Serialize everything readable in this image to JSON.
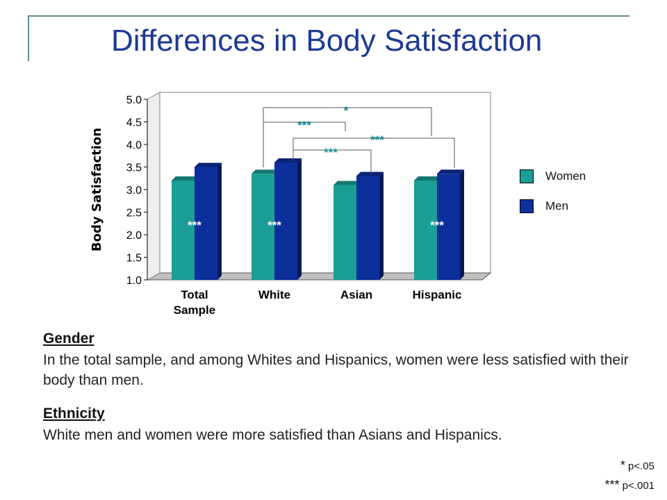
{
  "slide": {
    "title": "Differences in Body Satisfaction"
  },
  "chart_data": {
    "type": "bar",
    "title": "",
    "xlabel": "",
    "ylabel": "Body Satisfaction",
    "ylim": [
      1.0,
      5.0
    ],
    "yticks": [
      "1.0",
      "1.5",
      "2.0",
      "2.5",
      "3.0",
      "3.5",
      "4.0",
      "4.5",
      "5.0"
    ],
    "categories": [
      "Total Sample",
      "White",
      "Asian",
      "Hispanic"
    ],
    "series": [
      {
        "name": "Women",
        "color": "#1a9e96",
        "values": [
          3.2,
          3.35,
          3.1,
          3.2
        ]
      },
      {
        "name": "Men",
        "color": "#0d2f9c",
        "values": [
          3.5,
          3.6,
          3.3,
          3.35
        ]
      }
    ],
    "gender_significance": [
      "***",
      "***",
      "",
      "***"
    ],
    "ethnicity_comparisons": [
      {
        "from": "White",
        "to": "Hispanic",
        "label": "*"
      },
      {
        "from": "White",
        "to": "Asian",
        "label": "***"
      },
      {
        "from": "White",
        "to": "Hispanic",
        "label": "***"
      },
      {
        "from": "White",
        "to": "Asian",
        "label": "***"
      }
    ],
    "legend_position": "right",
    "grid": false
  },
  "legend": {
    "women_label": "Women",
    "men_label": "Men",
    "women_color": "#1a9e96",
    "men_color": "#0d2f9c"
  },
  "gender": {
    "heading": "Gender",
    "text": "In the total sample, and among Whites and Hispanics, women were less satisfied with their body than men."
  },
  "ethnicity": {
    "heading": "Ethnicity",
    "text": "White men and women were more satisfied than Asians and Hispanics."
  },
  "footnotes": [
    {
      "symbol": "*",
      "text": "p<.05"
    },
    {
      "symbol": "***",
      "text": "p<.001"
    }
  ]
}
